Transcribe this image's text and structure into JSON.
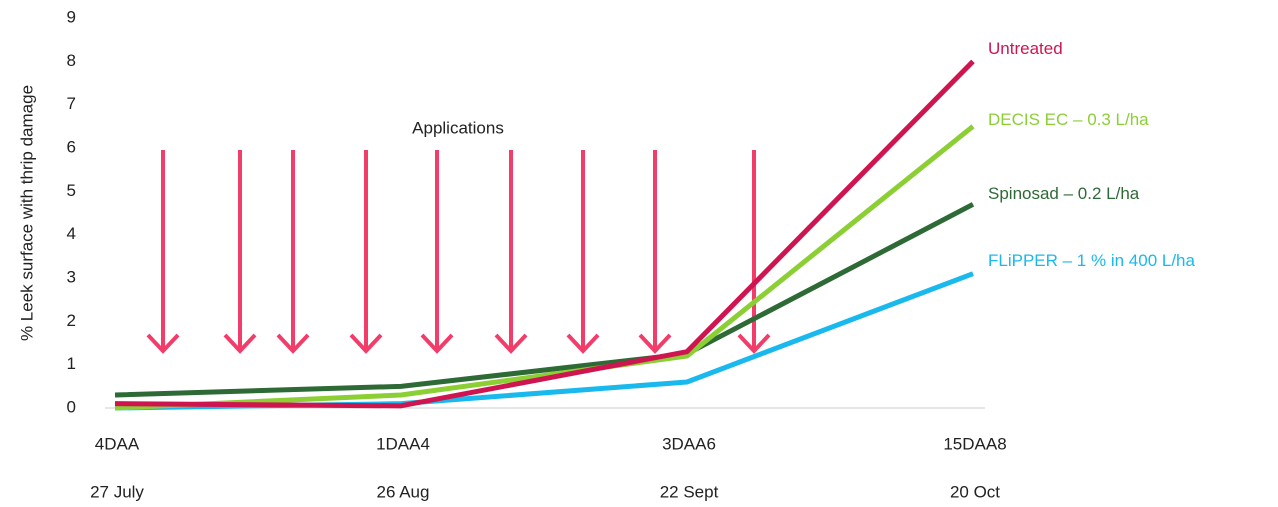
{
  "chart_data": {
    "type": "line",
    "y_label": "% Leek surface with thrip damage",
    "annotation": "Applications",
    "categories": [
      "4DAA",
      "1DAA4",
      "3DAA6",
      "15DAA8"
    ],
    "category_dates": [
      "27 July",
      "26 Aug",
      "22 Sept",
      "20 Oct"
    ],
    "series": [
      {
        "name": "FLiPPER – 1 % in 400 L/ha",
        "color": "#19b9ee",
        "values": [
          0,
          0.1,
          0.6,
          3.1
        ]
      },
      {
        "name": "Spinosad – 0.2 L/ha",
        "color": "#2e6a35",
        "values": [
          0.3,
          0.5,
          1.25,
          4.7
        ]
      },
      {
        "name": "DECIS EC – 0.3 L/ha",
        "color": "#8ccf35",
        "values": [
          0,
          0.3,
          1.2,
          6.5
        ]
      },
      {
        "name": "Untreated",
        "color": "#cf1550",
        "values": [
          0.1,
          0.05,
          1.3,
          8
        ]
      }
    ],
    "ylim": [
      0,
      9
    ],
    "yticks": [
      0,
      1,
      2,
      3,
      4,
      5,
      6,
      7,
      8,
      9
    ],
    "grid": false
  }
}
